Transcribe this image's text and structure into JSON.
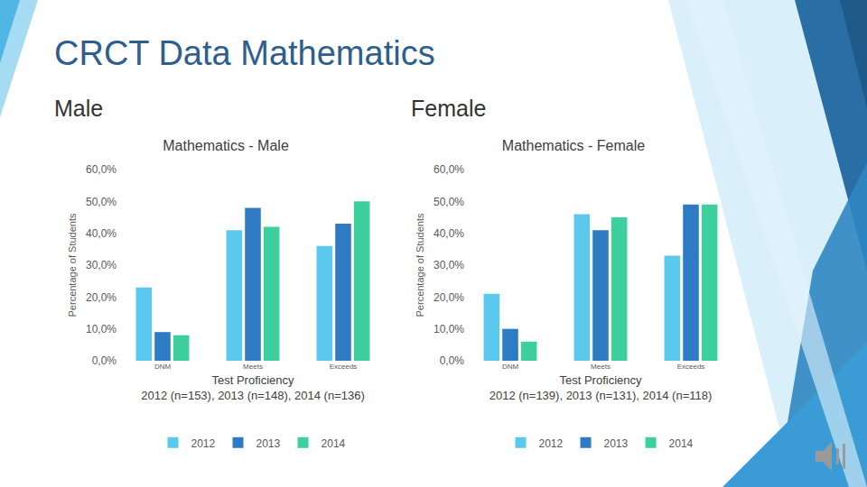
{
  "slide": {
    "title": "CRCT Data Mathematics",
    "headings": [
      "Male",
      "Female"
    ]
  },
  "chart_data": [
    {
      "type": "bar",
      "title": "Mathematics - Male",
      "categories": [
        "DNM",
        "Meets",
        "Exceeds"
      ],
      "series": [
        {
          "name": "2012",
          "color": "#5BC8EE",
          "values": [
            23,
            41,
            36
          ]
        },
        {
          "name": "2013",
          "color": "#2E7BC4",
          "values": [
            9,
            48,
            43
          ]
        },
        {
          "name": "2014",
          "color": "#3ECF9E",
          "values": [
            8,
            42,
            50
          ]
        }
      ],
      "x_label": [
        "Test Proficiency",
        "2012 (n=153), 2013 (n=148), 2014 (n=136)"
      ],
      "y_label": "Percentage of Students",
      "ylim": [
        0,
        60
      ],
      "yticks": [
        {
          "value": 0,
          "label": "0,0%"
        },
        {
          "value": 10,
          "label": "10,0%"
        },
        {
          "value": 20,
          "label": "20,0%"
        },
        {
          "value": 30,
          "label": "30,0%"
        },
        {
          "value": 40,
          "label": "40,0%"
        },
        {
          "value": 50,
          "label": "50,0%"
        },
        {
          "value": 60,
          "label": "60,0%"
        }
      ],
      "grid": false,
      "legend": "bottom"
    },
    {
      "type": "bar",
      "title": "Mathematics - Female",
      "categories": [
        "DNM",
        "Meets",
        "Exceeds"
      ],
      "series": [
        {
          "name": "2012",
          "color": "#5BC8EE",
          "values": [
            21,
            46,
            33
          ]
        },
        {
          "name": "2013",
          "color": "#2E7BC4",
          "values": [
            10,
            41,
            49
          ]
        },
        {
          "name": "2014",
          "color": "#3ECF9E",
          "values": [
            6,
            45,
            49
          ]
        }
      ],
      "x_label": [
        "Test Proficiency",
        "2012 (n=139), 2013 (n=131), 2014 (n=118)"
      ],
      "y_label": "Percentage of Students",
      "ylim": [
        0,
        60
      ],
      "yticks": [
        {
          "value": 0,
          "label": "0,0%"
        },
        {
          "value": 10,
          "label": "10,0%"
        },
        {
          "value": 20,
          "label": "20,0%"
        },
        {
          "value": 30,
          "label": "30,0%"
        },
        {
          "value": 40,
          "label": "40,0%"
        },
        {
          "value": 50,
          "label": "50,0%"
        },
        {
          "value": 60,
          "label": "60,0%"
        }
      ],
      "grid": false,
      "legend": "bottom"
    }
  ]
}
